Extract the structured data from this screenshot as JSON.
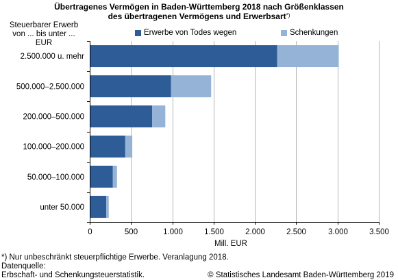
{
  "title_line1": "Übertragenes Vermögen in Baden-Württemberg 2018 nach Größenklassen",
  "title_line2": "des übertragenen Vermögens und Erwerbsart",
  "title_footnote_marker": "*)",
  "category_header": [
    "Steuerbarer Erwerb",
    "von ... bis unter ...",
    "EUR"
  ],
  "footnote": "*) Nur unbeschränkt steuerpflichtige Erwerbe. Veranlagung 2018.",
  "source_label": "Datenquelle:",
  "source_text": "Erbschaft- und Schenkungsteuerstatistik.",
  "copyright": "© Statistisches Landesamt Baden-Württemberg 2019",
  "colors": {
    "erwerbe": "#2e5c96",
    "schenkungen": "#95b3d7",
    "grid": "#b3b3b3",
    "axis": "#000000"
  },
  "chart_data": {
    "type": "bar",
    "orientation": "horizontal",
    "stacked": true,
    "categories": [
      "2.500.000 u. mehr",
      "500.000–2.500.000",
      "200.000–500.000",
      "100.000–200.000",
      "50.000–100.000",
      "unter 50.000"
    ],
    "series": [
      {
        "name": "Erwerbe von Todes wegen",
        "values": [
          2270,
          985,
          755,
          430,
          280,
          200
        ]
      },
      {
        "name": "Schenkungen",
        "values": [
          745,
          485,
          160,
          85,
          50,
          30
        ]
      }
    ],
    "xlabel": "Mill. EUR",
    "xlim": [
      0,
      3500
    ],
    "xticks": [
      0,
      500,
      1000,
      1500,
      2000,
      2500,
      3000,
      3500
    ],
    "xtick_labels": [
      "0",
      "500",
      "1.000",
      "1.500",
      "2.000",
      "2.500",
      "3.000",
      "3.500"
    ],
    "grid": "vertical",
    "legend_position": "top"
  }
}
